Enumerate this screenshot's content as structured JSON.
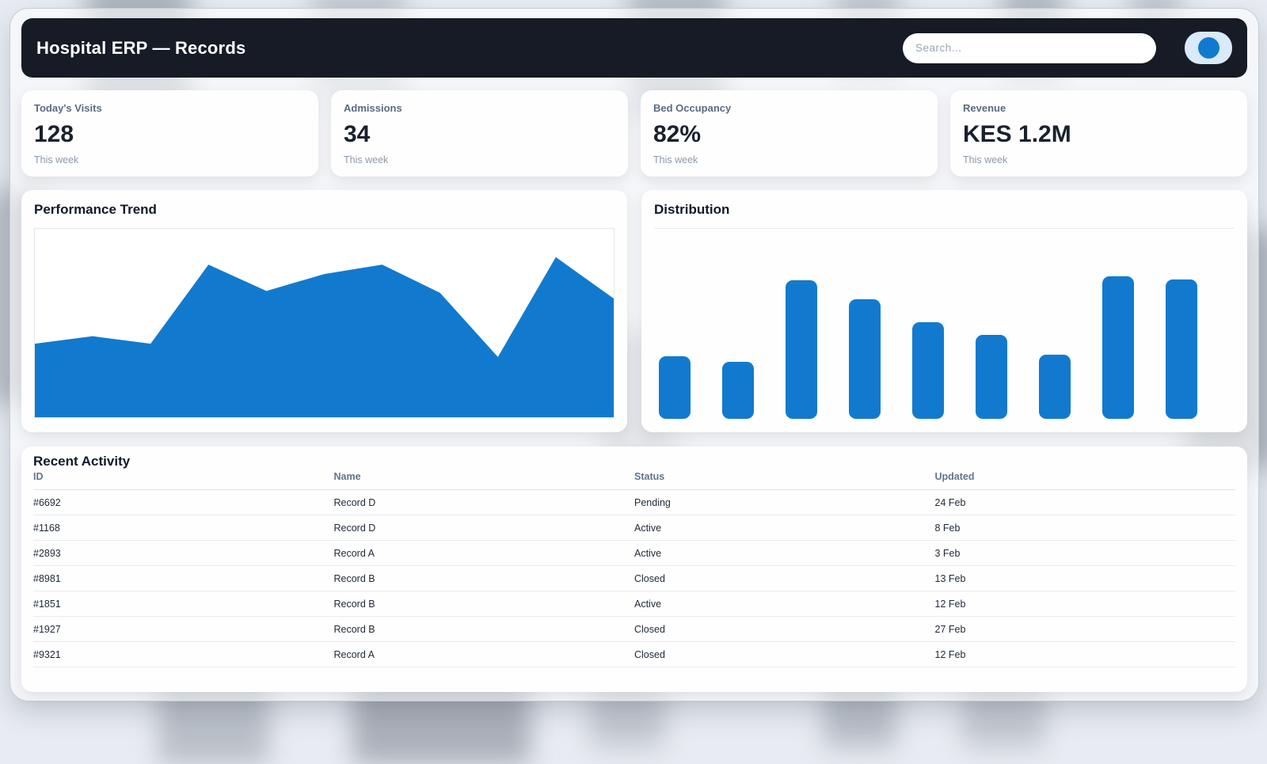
{
  "colors": {
    "accent": "#127ace",
    "header_bg": "#161b26"
  },
  "header": {
    "title": "Hospital ERP — Records",
    "search_placeholder": "Search..."
  },
  "stats": [
    {
      "label": "Today's Visits",
      "value": "128",
      "sub": "This week"
    },
    {
      "label": "Admissions",
      "value": "34",
      "sub": "This week"
    },
    {
      "label": "Bed Occupancy",
      "value": "82%",
      "sub": "This week"
    },
    {
      "label": "Revenue",
      "value": "KES 1.2M",
      "sub": "This week"
    }
  ],
  "chart_data": [
    {
      "type": "area",
      "title": "Performance Trend",
      "x": [
        0,
        1,
        2,
        3,
        4,
        5,
        6,
        7,
        8,
        9,
        10
      ],
      "values": [
        39,
        43,
        39,
        81,
        67,
        76,
        81,
        66,
        32,
        85,
        63
      ],
      "ylim": [
        0,
        100
      ],
      "color": "#127ace",
      "grid": false,
      "axes_labeled": false
    },
    {
      "type": "bar",
      "title": "Distribution",
      "categories": [
        "1",
        "2",
        "3",
        "4",
        "5",
        "6",
        "7",
        "8",
        "9"
      ],
      "values": [
        44,
        40,
        97,
        84,
        68,
        59,
        45,
        100,
        98
      ],
      "ylim": [
        0,
        130
      ],
      "color": "#127ace",
      "grid": false,
      "axes_labeled": false
    }
  ],
  "table": {
    "title": "Recent Activity",
    "columns": [
      "ID",
      "Name",
      "Status",
      "Updated"
    ],
    "rows": [
      [
        "#6692",
        "Record D",
        "Pending",
        "24 Feb"
      ],
      [
        "#1168",
        "Record D",
        "Active",
        "8 Feb"
      ],
      [
        "#2893",
        "Record A",
        "Active",
        "3 Feb"
      ],
      [
        "#8981",
        "Record B",
        "Closed",
        "13 Feb"
      ],
      [
        "#1851",
        "Record B",
        "Active",
        "12 Feb"
      ],
      [
        "#1927",
        "Record B",
        "Closed",
        "27 Feb"
      ],
      [
        "#9321",
        "Record A",
        "Closed",
        "12 Feb"
      ]
    ]
  }
}
